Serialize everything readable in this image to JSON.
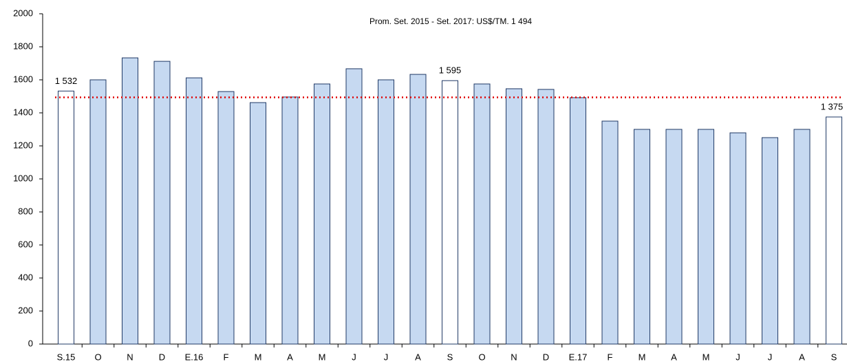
{
  "chart_data": {
    "type": "bar",
    "categories": [
      "S.15",
      "O",
      "N",
      "D",
      "E.16",
      "F",
      "M",
      "A",
      "M",
      "J",
      "J",
      "A",
      "S",
      "O",
      "N",
      "D",
      "E.17",
      "F",
      "M",
      "A",
      "M",
      "J",
      "J",
      "A",
      "S"
    ],
    "values": [
      1532,
      1600,
      1733,
      1712,
      1612,
      1529,
      1462,
      1496,
      1575,
      1667,
      1600,
      1633,
      1595,
      1575,
      1546,
      1542,
      1492,
      1350,
      1300,
      1300,
      1300,
      1279,
      1250,
      1300,
      1375
    ],
    "value_labels": [
      "1 532",
      null,
      null,
      null,
      null,
      null,
      null,
      null,
      null,
      null,
      null,
      null,
      "1 595",
      null,
      null,
      null,
      null,
      null,
      null,
      null,
      null,
      null,
      null,
      null,
      "1 375"
    ],
    "colors": [
      "#ffffff",
      "#c6d9f1",
      "#c6d9f1",
      "#c6d9f1",
      "#c6d9f1",
      "#c6d9f1",
      "#c6d9f1",
      "#c6d9f1",
      "#c6d9f1",
      "#c6d9f1",
      "#c6d9f1",
      "#c6d9f1",
      "#ffffff",
      "#c6d9f1",
      "#c6d9f1",
      "#c6d9f1",
      "#c6d9f1",
      "#c6d9f1",
      "#c6d9f1",
      "#c6d9f1",
      "#c6d9f1",
      "#c6d9f1",
      "#c6d9f1",
      "#c6d9f1",
      "#ffffff"
    ],
    "edge_color": "#1f3864",
    "reference_line": {
      "value": 1494,
      "label": "Prom. Set. 2015 - Set. 2017: US$/TM. 1 494",
      "color": "#e00000"
    },
    "ylim": [
      0,
      2000
    ],
    "yticks": [
      0,
      200,
      400,
      600,
      800,
      1000,
      1200,
      1400,
      1600,
      1800,
      2000
    ],
    "grid": false
  }
}
